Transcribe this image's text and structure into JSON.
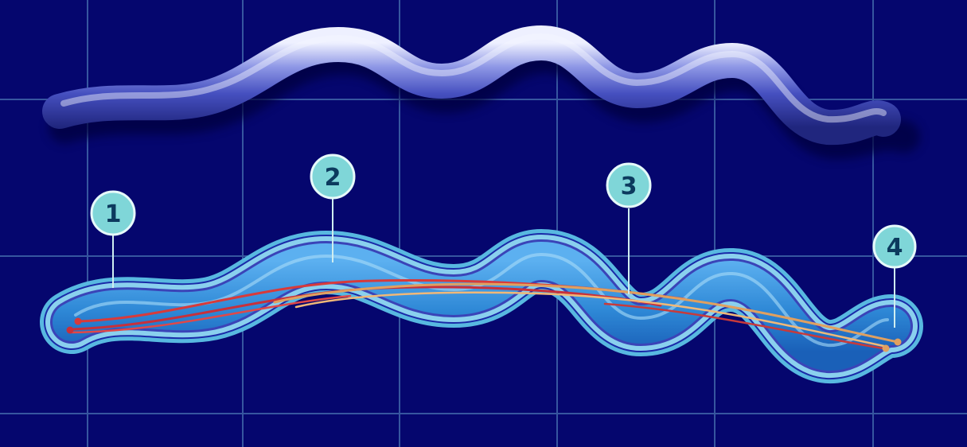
{
  "colors": {
    "background": "#05066e",
    "grid": "#3f64a8",
    "spirochete_body": "#4650c0",
    "cell_outer": "#58b8e0",
    "cell_inner": "#2e88d6",
    "cell_edge": "#1a2aa8",
    "flagella_red": "#d83a3a",
    "flagella_orange": "#e0a060",
    "callout_fill": "#7fd6d8",
    "callout_text": "#0c3a5e"
  },
  "callouts": [
    {
      "label": "1"
    },
    {
      "label": "2"
    },
    {
      "label": "3"
    },
    {
      "label": "4"
    }
  ]
}
